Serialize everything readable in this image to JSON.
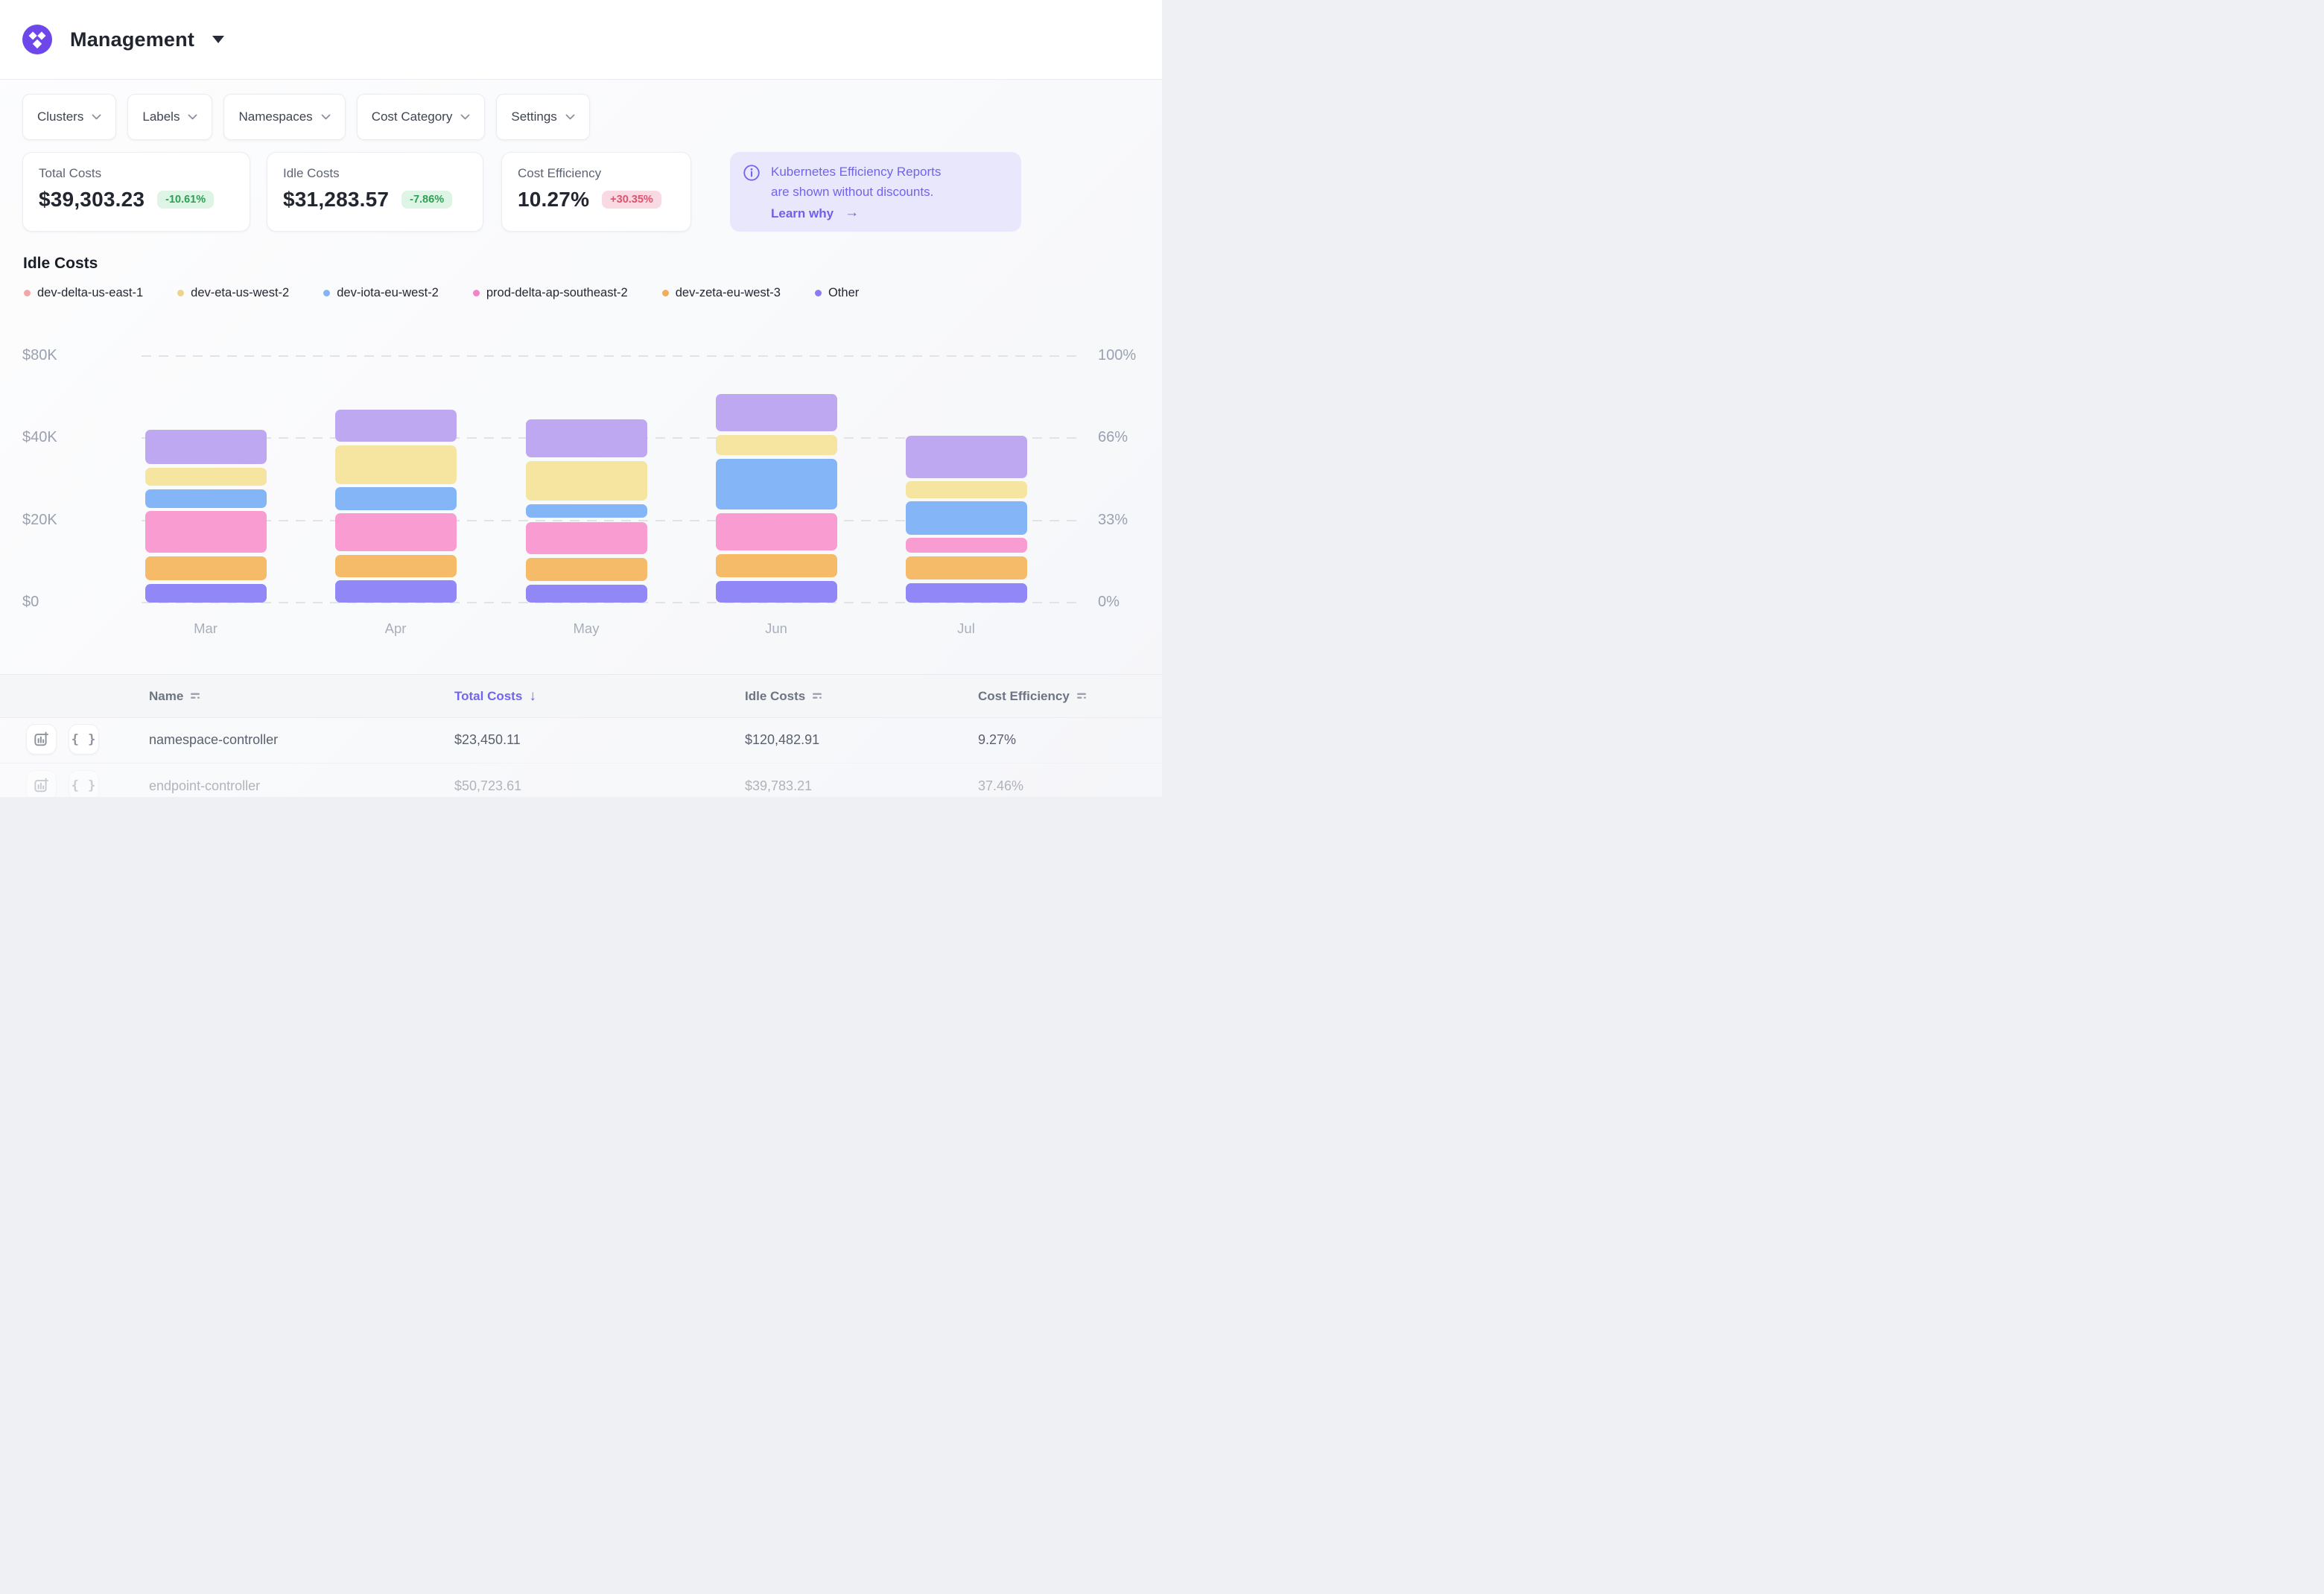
{
  "header": {
    "title": "Management"
  },
  "filters": [
    {
      "label": "Clusters"
    },
    {
      "label": "Labels"
    },
    {
      "label": "Namespaces"
    },
    {
      "label": "Cost Category"
    },
    {
      "label": "Settings"
    }
  ],
  "stats": [
    {
      "label": "Total Costs",
      "value": "$39,303.23",
      "delta": "-10.61%",
      "delta_color": "green"
    },
    {
      "label": "Idle Costs",
      "value": "$31,283.57",
      "delta": "-7.86%",
      "delta_color": "green"
    },
    {
      "label": "Cost Efficiency",
      "value": "10.27%",
      "delta": "+30.35%",
      "delta_color": "red"
    }
  ],
  "banner": {
    "line1": "Kubernetes Efficiency Reports",
    "line2": "are shown without discounts.",
    "link_label": "Learn why",
    "arrow": "→"
  },
  "section": {
    "title": "Idle Costs"
  },
  "legend": [
    {
      "label": "dev-delta-us-east-1",
      "color": "#f2a8ab"
    },
    {
      "label": "dev-eta-us-west-2",
      "color": "#ecd48f"
    },
    {
      "label": "dev-iota-eu-west-2",
      "color": "#84b4f4"
    },
    {
      "label": "prod-delta-ap-southeast-2",
      "color": "#f583c8"
    },
    {
      "label": "dev-zeta-eu-west-3",
      "color": "#f2ad5b"
    },
    {
      "label": "Other",
      "color": "#8b7cf4"
    }
  ],
  "chart_data": {
    "type": "bar",
    "subtype": "stacked-vertical-rounded-segments",
    "title": "Idle Costs",
    "categories": [
      "Mar",
      "Apr",
      "May",
      "Jun",
      "Jul"
    ],
    "y_axis_left_labels": [
      "$80K",
      "$40K",
      "$20K",
      "$0"
    ],
    "y_axis_right_labels": [
      "100%",
      "66%",
      "33%",
      "0%"
    ],
    "gridlines": "horizontal dashed at 0 / 33 / 66 / 100 percent",
    "value_unit": "percent of plot height (right axis)",
    "series": [
      {
        "name": "Other",
        "color": "#9187f7",
        "segments": [
          [
            0,
            7.6
          ],
          [
            0,
            9.0
          ],
          [
            0,
            7.1
          ],
          [
            0,
            8.8
          ],
          [
            0,
            7.9
          ]
        ]
      },
      {
        "name": "dev-zeta-eu-west-3",
        "color": "#f5bb68",
        "segments": [
          [
            9.1,
            18.6
          ],
          [
            10.4,
            19.3
          ],
          [
            8.7,
            18.0
          ],
          [
            10.4,
            19.5
          ],
          [
            9.3,
            18.7
          ]
        ]
      },
      {
        "name": "prod-delta-ap-southeast-2",
        "color": "#f89cd2",
        "segments": [
          [
            20.1,
            37.1
          ],
          [
            20.7,
            36.3
          ],
          [
            19.6,
            32.6
          ],
          [
            21.0,
            36.4
          ],
          [
            20.3,
            26.2
          ]
        ]
      },
      {
        "name": "dev-iota-eu-west-2",
        "color": "#84b5f6",
        "segments": [
          [
            38.5,
            45.8
          ],
          [
            37.6,
            46.8
          ],
          [
            34.3,
            39.9
          ],
          [
            37.8,
            58.2
          ],
          [
            27.5,
            41.0
          ]
        ]
      },
      {
        "name": "dev-eta-us-west-2",
        "color": "#f5e5a0",
        "segments": [
          [
            47.5,
            54.6
          ],
          [
            48.1,
            63.8
          ],
          [
            41.3,
            57.4
          ],
          [
            59.7,
            68.1
          ],
          [
            42.4,
            49.2
          ]
        ]
      },
      {
        "name": "dev-delta-us-east-1",
        "color": "#bfa8f2",
        "segments": [
          [
            56.2,
            70.2
          ],
          [
            65.3,
            78.3
          ],
          [
            58.9,
            74.2
          ],
          [
            69.6,
            84.6
          ],
          [
            50.6,
            67.6
          ]
        ]
      }
    ],
    "bar_totals_percent": [
      70.2,
      78.3,
      74.2,
      84.6,
      67.6
    ]
  },
  "table": {
    "columns": [
      {
        "label": "Name",
        "sorted": false
      },
      {
        "label": "Total Costs",
        "sorted": true,
        "direction": "desc"
      },
      {
        "label": "Idle Costs",
        "sorted": false
      },
      {
        "label": "Cost Efficiency",
        "sorted": false
      }
    ],
    "rows": [
      {
        "name": "namespace-controller",
        "total_costs": "$23,450.11",
        "idle_costs": "$120,482.91",
        "cost_efficiency": "9.27%",
        "faded": false
      },
      {
        "name": "endpoint-controller",
        "total_costs": "$50,723.61",
        "idle_costs": "$39,783.21",
        "cost_efficiency": "37.46%",
        "faded": true
      }
    ]
  },
  "theme": {
    "accent": "#7265ec",
    "banner_bg": "#e9e7fb",
    "logo_bg": "#6d47ea",
    "green_badge": {
      "bg": "#def4e4",
      "text": "#2f9e57"
    },
    "red_badge": {
      "bg": "#f9dae2",
      "text": "#e0516f"
    },
    "axis_text": "#9aa1b0"
  }
}
